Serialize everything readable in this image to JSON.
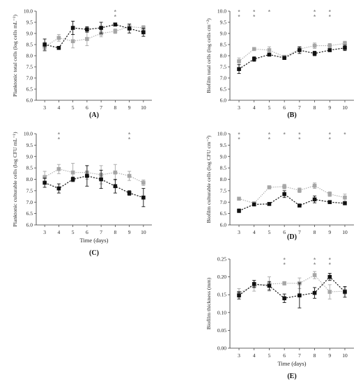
{
  "colors": {
    "series_dark": "#111111",
    "series_light": "#a6a6a6",
    "axis": "#333333",
    "star": "#8c8c8c"
  },
  "chart_data": [
    {
      "type": "line",
      "panel_label": "(A)",
      "ylabel": "Planktonic total cells (log cells mL⁻¹)",
      "xlabel": "",
      "x": [
        3,
        4,
        5,
        6,
        7,
        8,
        9,
        10
      ],
      "xlim": [
        2.4,
        10.6
      ],
      "ylim": [
        6.0,
        10.0
      ],
      "yticks": [
        "6.0",
        "6.5",
        "7.0",
        "7.5",
        "8.0",
        "8.5",
        "9.0",
        "9.5",
        "10.0"
      ],
      "series": [
        {
          "values": [
            8.5,
            8.35,
            9.25,
            9.18,
            9.25,
            9.4,
            9.22,
            9.05
          ],
          "errors": [
            0.25,
            0.05,
            0.3,
            0.12,
            0.25,
            0.05,
            0.2,
            0.18
          ],
          "style": "dark"
        },
        {
          "values": [
            8.4,
            8.8,
            8.65,
            8.75,
            9.0,
            9.1,
            9.3,
            9.25
          ],
          "errors": [
            0.2,
            0.15,
            0.3,
            0.3,
            0.15,
            0.1,
            0.12,
            0.1
          ],
          "style": "light"
        }
      ],
      "significance": [
        {
          "x": 8,
          "marks": [
            "*",
            "*"
          ]
        }
      ]
    },
    {
      "type": "line",
      "panel_label": "(B)",
      "ylabel": "Biofilm total cells (log cells cm⁻²)",
      "xlabel": "",
      "x": [
        3,
        4,
        5,
        6,
        7,
        8,
        9,
        10
      ],
      "xlim": [
        2.4,
        10.6
      ],
      "ylim": [
        6.0,
        10.0
      ],
      "yticks": [
        "6.0",
        "6.5",
        "7.0",
        "7.5",
        "8.0",
        "8.5",
        "9.0",
        "9.5",
        "10.0"
      ],
      "series": [
        {
          "values": [
            7.4,
            7.85,
            8.05,
            7.9,
            8.25,
            8.1,
            8.25,
            8.35
          ],
          "errors": [
            0.2,
            0.1,
            0.05,
            0.05,
            0.15,
            0.1,
            0.05,
            0.12
          ],
          "style": "dark"
        },
        {
          "values": [
            7.75,
            8.3,
            8.25,
            7.95,
            8.3,
            8.45,
            8.45,
            8.55
          ],
          "errors": [
            0.15,
            0.05,
            0.15,
            0.05,
            0.1,
            0.12,
            0.1,
            0.1
          ],
          "style": "light"
        }
      ],
      "significance": [
        {
          "x": 3,
          "marks": [
            "*",
            "*"
          ]
        },
        {
          "x": 4,
          "marks": [
            "*",
            "*"
          ]
        },
        {
          "x": 5,
          "marks": [
            "*"
          ]
        },
        {
          "x": 8,
          "marks": [
            "*",
            "*"
          ]
        },
        {
          "x": 9,
          "marks": [
            "*",
            "*"
          ]
        }
      ]
    },
    {
      "type": "line",
      "panel_label": "(C)",
      "ylabel": "Planktonic culturable cells (log CFU mL⁻¹)",
      "xlabel": "Time (days)",
      "x": [
        3,
        4,
        5,
        6,
        7,
        8,
        9,
        10
      ],
      "xlim": [
        2.4,
        10.6
      ],
      "ylim": [
        6.0,
        10.0
      ],
      "yticks": [
        "6.0",
        "6.5",
        "7.0",
        "7.5",
        "8.0",
        "8.5",
        "9.0",
        "9.5",
        "10.0"
      ],
      "series": [
        {
          "values": [
            7.85,
            7.6,
            8.0,
            8.15,
            8.0,
            7.7,
            7.4,
            7.2
          ],
          "errors": [
            0.2,
            0.2,
            0.1,
            0.45,
            0.4,
            0.3,
            0.1,
            0.4
          ],
          "style": "dark"
        },
        {
          "values": [
            8.1,
            8.45,
            8.3,
            8.3,
            8.2,
            8.3,
            8.15,
            7.85
          ],
          "errors": [
            0.25,
            0.2,
            0.4,
            0.3,
            0.4,
            0.35,
            0.2,
            0.12
          ],
          "style": "light"
        }
      ],
      "significance": [
        {
          "x": 4,
          "marks": [
            "*",
            "*"
          ]
        },
        {
          "x": 9,
          "marks": [
            "*",
            "*"
          ]
        }
      ]
    },
    {
      "type": "line",
      "panel_label": "(D)",
      "ylabel": "Biofilm culturable cells (log CFU cm⁻²)",
      "xlabel": "",
      "x": [
        3,
        4,
        5,
        6,
        7,
        8,
        9,
        10
      ],
      "xlim": [
        2.4,
        10.6
      ],
      "ylim": [
        6.0,
        10.0
      ],
      "yticks": [
        "6.0",
        "6.5",
        "7.0",
        "7.5",
        "8.0",
        "8.5",
        "9.0",
        "9.5",
        "10.0"
      ],
      "series": [
        {
          "values": [
            6.62,
            6.9,
            6.92,
            7.35,
            6.85,
            7.12,
            7.0,
            6.95
          ],
          "errors": [
            0.08,
            0.05,
            0.05,
            0.15,
            0.05,
            0.15,
            0.05,
            0.05
          ],
          "style": "dark"
        },
        {
          "values": [
            7.15,
            6.95,
            7.65,
            7.68,
            7.52,
            7.72,
            7.35,
            7.2
          ],
          "errors": [
            0.05,
            0.05,
            0.05,
            0.1,
            0.1,
            0.12,
            0.1,
            0.15
          ],
          "style": "light"
        }
      ],
      "significance": [
        {
          "x": 3,
          "marks": [
            "*",
            "*"
          ]
        },
        {
          "x": 5,
          "marks": [
            "*",
            "*"
          ]
        },
        {
          "x": 6,
          "marks": [
            "*"
          ]
        },
        {
          "x": 7,
          "marks": [
            "*",
            "*"
          ]
        },
        {
          "x": 9,
          "marks": [
            "*",
            "*"
          ]
        },
        {
          "x": 10,
          "marks": [
            "*"
          ]
        }
      ]
    },
    {
      "type": "line",
      "panel_label": "(E)",
      "ylabel": "Biofilm thickness (mm)",
      "xlabel": "Time (days)",
      "x": [
        3,
        4,
        5,
        6,
        7,
        8,
        9,
        10
      ],
      "xlim": [
        2.4,
        10.6
      ],
      "ylim": [
        0.0,
        0.25
      ],
      "yticks": [
        "0.00",
        "0.05",
        "0.10",
        "0.15",
        "0.20",
        "0.25"
      ],
      "series": [
        {
          "values": [
            0.148,
            0.18,
            0.175,
            0.14,
            0.148,
            0.155,
            0.2,
            0.158
          ],
          "errors": [
            0.01,
            0.01,
            0.012,
            0.012,
            0.035,
            0.015,
            0.01,
            0.015
          ],
          "style": "dark"
        },
        {
          "values": [
            0.155,
            0.175,
            0.18,
            0.182,
            0.182,
            0.205,
            0.158,
            0.16
          ],
          "errors": [
            0.012,
            0.015,
            0.02,
            0.005,
            0.015,
            0.01,
            0.02,
            0.01
          ],
          "style": "light"
        }
      ],
      "significance": [
        {
          "x": 6,
          "marks": [
            "*",
            "*"
          ]
        },
        {
          "x": 8,
          "marks": [
            "*",
            "*"
          ]
        },
        {
          "x": 9,
          "marks": [
            "*",
            "*"
          ]
        }
      ]
    }
  ]
}
